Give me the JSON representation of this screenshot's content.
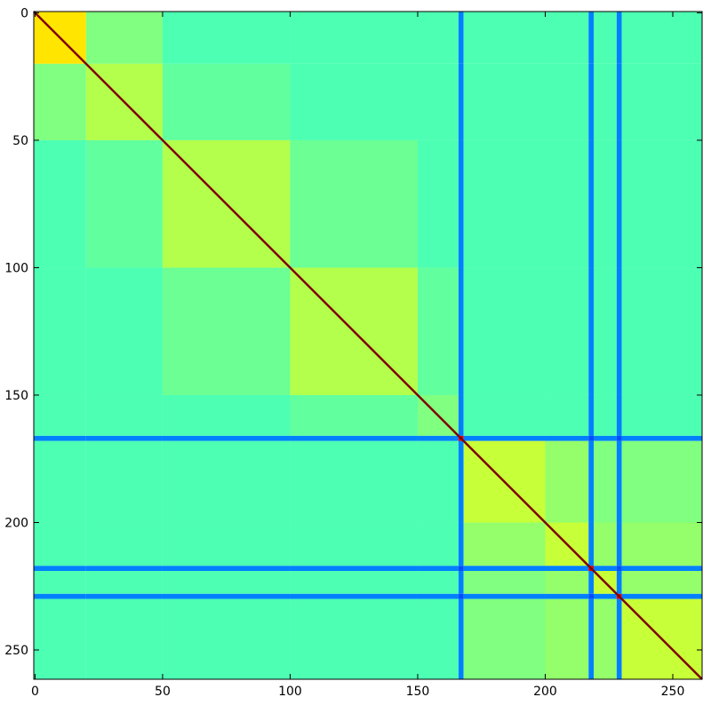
{
  "chart_data": {
    "type": "heatmap",
    "colormap": "jet",
    "vlim": [
      0,
      1
    ],
    "xlim": [
      -0.5,
      261.5
    ],
    "ylim": [
      261.5,
      -0.5
    ],
    "xticks": [
      0,
      50,
      100,
      150,
      200,
      250
    ],
    "yticks": [
      0,
      50,
      100,
      150,
      200,
      250
    ],
    "edges": [
      -0.5,
      20,
      50,
      100,
      150,
      166,
      168,
      200,
      217,
      219,
      228,
      230,
      261.5
    ],
    "diagonal_value": 1,
    "values": [
      [
        0.65,
        0.5,
        0.45,
        0.45,
        0.45,
        0.25,
        0.45,
        0.45,
        0.25,
        0.45,
        0.25,
        0.45
      ],
      [
        0.5,
        0.55,
        0.47,
        0.45,
        0.45,
        0.25,
        0.45,
        0.45,
        0.25,
        0.45,
        0.25,
        0.45
      ],
      [
        0.45,
        0.47,
        0.55,
        0.48,
        0.45,
        0.25,
        0.45,
        0.45,
        0.25,
        0.45,
        0.25,
        0.45
      ],
      [
        0.45,
        0.45,
        0.48,
        0.55,
        0.47,
        0.25,
        0.45,
        0.45,
        0.25,
        0.45,
        0.25,
        0.45
      ],
      [
        0.45,
        0.45,
        0.45,
        0.47,
        0.5,
        0.25,
        0.45,
        0.45,
        0.25,
        0.45,
        0.25,
        0.45
      ],
      [
        0.25,
        0.25,
        0.25,
        0.25,
        0.25,
        0.9,
        0.25,
        0.25,
        0.2,
        0.25,
        0.2,
        0.25
      ],
      [
        0.45,
        0.45,
        0.45,
        0.45,
        0.45,
        0.25,
        0.57,
        0.52,
        0.25,
        0.5,
        0.25,
        0.5
      ],
      [
        0.45,
        0.45,
        0.45,
        0.45,
        0.45,
        0.25,
        0.52,
        0.57,
        0.25,
        0.52,
        0.25,
        0.52
      ],
      [
        0.25,
        0.25,
        0.25,
        0.25,
        0.25,
        0.2,
        0.25,
        0.25,
        0.9,
        0.25,
        0.2,
        0.25
      ],
      [
        0.45,
        0.45,
        0.45,
        0.45,
        0.45,
        0.25,
        0.5,
        0.52,
        0.25,
        0.57,
        0.25,
        0.52
      ],
      [
        0.25,
        0.25,
        0.25,
        0.25,
        0.25,
        0.2,
        0.25,
        0.25,
        0.2,
        0.25,
        0.9,
        0.25
      ],
      [
        0.45,
        0.45,
        0.45,
        0.45,
        0.45,
        0.25,
        0.5,
        0.52,
        0.25,
        0.52,
        0.25,
        0.57
      ]
    ]
  }
}
